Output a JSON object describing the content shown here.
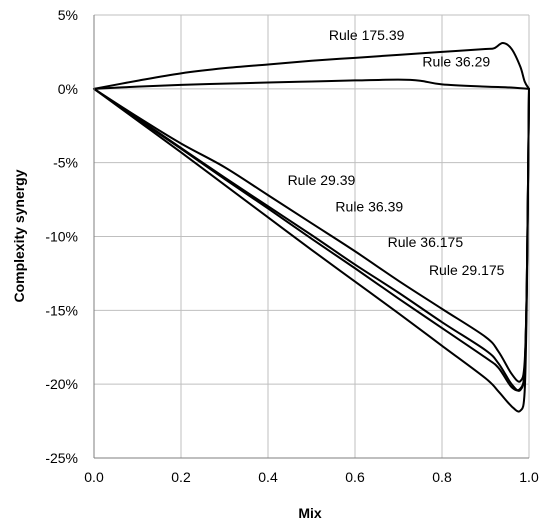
{
  "chart_data": {
    "type": "line",
    "title": "",
    "xlabel": "Mix",
    "ylabel": "Complexity synergy",
    "xlim": [
      0,
      1
    ],
    "ylim": [
      -25,
      5
    ],
    "x_ticks": [
      0,
      0.2,
      0.4,
      0.6,
      0.8,
      1
    ],
    "x_tick_labels": [
      "0.0",
      "0.2",
      "0.4",
      "0.6",
      "0.8",
      "1.0"
    ],
    "y_ticks": [
      5,
      0,
      -5,
      -10,
      -15,
      -20,
      -25
    ],
    "y_tick_labels": [
      "5%",
      "0%",
      "-5%",
      "-10%",
      "-15%",
      "-20%",
      "-25%"
    ],
    "grid": true,
    "legend": "none",
    "series": [
      {
        "name": "Rule 175.39",
        "label_at": [
          0.54,
          3.3
        ],
        "points": [
          [
            0,
            0
          ],
          [
            0.1,
            0.55
          ],
          [
            0.2,
            1.05
          ],
          [
            0.3,
            1.4
          ],
          [
            0.4,
            1.65
          ],
          [
            0.5,
            1.9
          ],
          [
            0.6,
            2.1
          ],
          [
            0.7,
            2.3
          ],
          [
            0.8,
            2.5
          ],
          [
            0.9,
            2.7
          ],
          [
            0.92,
            2.75
          ],
          [
            0.94,
            3.1
          ],
          [
            0.96,
            2.7
          ],
          [
            0.98,
            1.5
          ],
          [
            0.99,
            0.5
          ],
          [
            1,
            0
          ]
        ]
      },
      {
        "name": "Rule 36.29",
        "label_at": [
          0.755,
          1.5
        ],
        "points": [
          [
            0,
            0
          ],
          [
            0.1,
            0.15
          ],
          [
            0.2,
            0.27
          ],
          [
            0.3,
            0.35
          ],
          [
            0.4,
            0.43
          ],
          [
            0.5,
            0.5
          ],
          [
            0.6,
            0.57
          ],
          [
            0.7,
            0.62
          ],
          [
            0.75,
            0.55
          ],
          [
            0.8,
            0.3
          ],
          [
            0.9,
            0.15
          ],
          [
            0.95,
            0.1
          ],
          [
            1,
            0
          ]
        ]
      },
      {
        "name": "Rule 29.39",
        "label_at": [
          0.445,
          -6.5
        ],
        "points": [
          [
            0,
            0
          ],
          [
            0.1,
            -1.9
          ],
          [
            0.2,
            -3.7
          ],
          [
            0.3,
            -5.3
          ],
          [
            0.4,
            -7.2
          ],
          [
            0.5,
            -9.1
          ],
          [
            0.6,
            -11.0
          ],
          [
            0.7,
            -13.0
          ],
          [
            0.8,
            -14.9
          ],
          [
            0.9,
            -16.8
          ],
          [
            0.93,
            -17.8
          ],
          [
            0.96,
            -19.3
          ],
          [
            0.98,
            -19.8
          ],
          [
            0.99,
            -18.5
          ],
          [
            0.995,
            -13.0
          ],
          [
            1,
            0
          ]
        ]
      },
      {
        "name": "Rule 36.39",
        "label_at": [
          0.555,
          -8.3
        ],
        "points": [
          [
            0,
            0
          ],
          [
            0.1,
            -2.0
          ],
          [
            0.2,
            -4.0
          ],
          [
            0.3,
            -6.0
          ],
          [
            0.4,
            -7.95
          ],
          [
            0.5,
            -9.9
          ],
          [
            0.6,
            -11.9
          ],
          [
            0.7,
            -13.8
          ],
          [
            0.8,
            -15.8
          ],
          [
            0.9,
            -17.7
          ],
          [
            0.93,
            -18.6
          ],
          [
            0.96,
            -20.0
          ],
          [
            0.98,
            -20.4
          ],
          [
            0.99,
            -19.0
          ],
          [
            0.995,
            -13.0
          ],
          [
            1,
            0
          ]
        ]
      },
      {
        "name": "Rule 36.175",
        "label_at": [
          0.675,
          -10.7
        ],
        "points": [
          [
            0,
            0
          ],
          [
            0.1,
            -2.05
          ],
          [
            0.2,
            -4.05
          ],
          [
            0.3,
            -6.1
          ],
          [
            0.4,
            -8.1
          ],
          [
            0.5,
            -10.15
          ],
          [
            0.6,
            -12.15
          ],
          [
            0.7,
            -14.2
          ],
          [
            0.8,
            -16.2
          ],
          [
            0.9,
            -18.2
          ],
          [
            0.93,
            -18.9
          ],
          [
            0.96,
            -20.2
          ],
          [
            0.98,
            -20.3
          ],
          [
            0.99,
            -19.0
          ],
          [
            0.995,
            -13.0
          ],
          [
            1,
            0
          ]
        ]
      },
      {
        "name": "Rule 29.175",
        "label_at": [
          0.77,
          -12.6
        ],
        "points": [
          [
            0,
            0
          ],
          [
            0.1,
            -2.15
          ],
          [
            0.2,
            -4.3
          ],
          [
            0.3,
            -6.5
          ],
          [
            0.4,
            -8.7
          ],
          [
            0.5,
            -10.9
          ],
          [
            0.6,
            -13.05
          ],
          [
            0.7,
            -15.2
          ],
          [
            0.8,
            -17.4
          ],
          [
            0.9,
            -19.6
          ],
          [
            0.93,
            -20.5
          ],
          [
            0.96,
            -21.5
          ],
          [
            0.98,
            -21.8
          ],
          [
            0.99,
            -20.5
          ],
          [
            0.995,
            -14.0
          ],
          [
            1,
            0
          ]
        ]
      }
    ]
  }
}
